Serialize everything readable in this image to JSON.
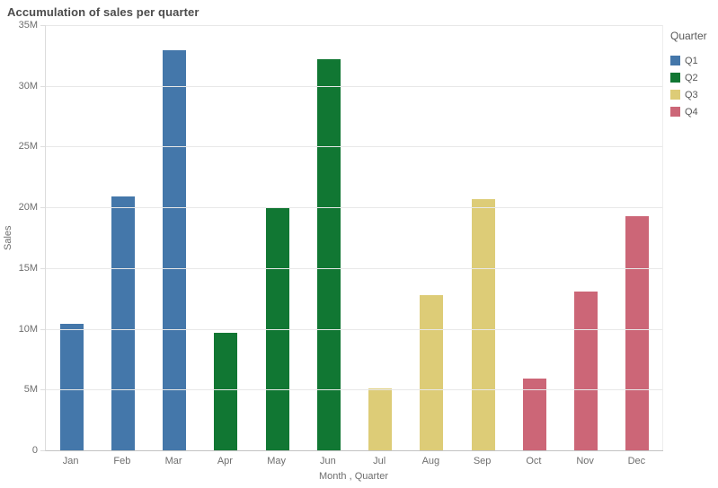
{
  "title": "Accumulation of sales per quarter",
  "chart_data": {
    "type": "bar",
    "title": "Accumulation of sales per quarter",
    "categories": [
      "Jan",
      "Feb",
      "Mar",
      "Apr",
      "May",
      "Jun",
      "Jul",
      "Aug",
      "Sep",
      "Oct",
      "Nov",
      "Dec"
    ],
    "values": [
      10.4,
      20.9,
      32.9,
      9.7,
      20.0,
      32.2,
      5.1,
      12.8,
      20.7,
      5.9,
      13.1,
      19.3
    ],
    "value_unit": "M",
    "quarter_of_month": [
      "Q1",
      "Q1",
      "Q1",
      "Q2",
      "Q2",
      "Q2",
      "Q3",
      "Q3",
      "Q3",
      "Q4",
      "Q4",
      "Q4"
    ],
    "series_colors": {
      "Q1": "#4477aa",
      "Q2": "#117733",
      "Q3": "#ddcc77",
      "Q4": "#cc6677"
    },
    "xlabel": "Month , Quarter",
    "ylabel": "Sales",
    "ylim": [
      0,
      35
    ],
    "yticks": [
      {
        "value": 0,
        "label": "0"
      },
      {
        "value": 5,
        "label": "5M"
      },
      {
        "value": 10,
        "label": "10M"
      },
      {
        "value": 15,
        "label": "15M"
      },
      {
        "value": 20,
        "label": "20M"
      },
      {
        "value": 25,
        "label": "25M"
      },
      {
        "value": 30,
        "label": "30M"
      },
      {
        "value": 35,
        "label": "35M"
      }
    ],
    "grid": true,
    "legend": {
      "title": "Quarter",
      "position": "right",
      "items": [
        {
          "label": "Q1",
          "color": "#4477aa"
        },
        {
          "label": "Q2",
          "color": "#117733"
        },
        {
          "label": "Q3",
          "color": "#ddcc77"
        },
        {
          "label": "Q4",
          "color": "#cc6677"
        }
      ]
    }
  }
}
